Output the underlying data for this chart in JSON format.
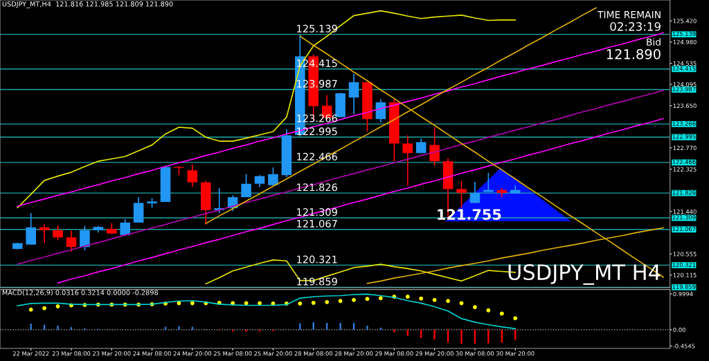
{
  "chart_data": [
    {
      "type": "candlestick",
      "title": "USDJPY_MT,H4  121.816 121.985 121.809 121.890",
      "categories": [
        null,
        null,
        null,
        null,
        null,
        null,
        null,
        null,
        null,
        null,
        null,
        null,
        null,
        null,
        null,
        null,
        null,
        null,
        null,
        null,
        null,
        null,
        null,
        null,
        null,
        null,
        null,
        null,
        null,
        null,
        null,
        null,
        null,
        null,
        null,
        null,
        null,
        null,
        null,
        null,
        null,
        null,
        null,
        null,
        null,
        null,
        null,
        null,
        null
      ],
      "ohlc": [
        [
          120.66,
          120.79,
          120.65,
          120.78
        ],
        [
          120.75,
          121.41,
          120.75,
          121.11
        ],
        [
          121.11,
          121.18,
          120.78,
          121.05
        ],
        [
          121.05,
          121.15,
          120.84,
          120.9
        ],
        [
          120.9,
          121.04,
          120.6,
          120.7
        ],
        [
          120.7,
          121.14,
          120.63,
          121.05
        ],
        [
          121.05,
          121.14,
          121.0,
          121.12
        ],
        [
          121.08,
          121.2,
          120.97,
          120.98
        ],
        [
          120.95,
          121.28,
          120.93,
          121.21
        ],
        [
          121.21,
          121.74,
          121.21,
          121.62
        ],
        [
          121.61,
          121.72,
          121.52,
          121.65
        ],
        [
          121.64,
          122.4,
          121.64,
          122.37
        ],
        [
          122.37,
          122.39,
          122.2,
          122.35
        ],
        [
          122.3,
          122.42,
          121.95,
          122.05
        ],
        [
          122.05,
          122.08,
          121.17,
          121.47
        ],
        [
          121.47,
          121.93,
          121.41,
          121.51
        ],
        [
          121.51,
          121.78,
          121.45,
          121.74
        ],
        [
          121.74,
          122.22,
          121.74,
          122.02
        ],
        [
          122.02,
          122.2,
          121.95,
          122.18
        ],
        [
          121.99,
          122.36,
          121.99,
          122.22
        ],
        [
          122.2,
          123.16,
          122.16,
          123.03
        ],
        [
          123.04,
          125.139,
          123.01,
          124.68
        ],
        [
          124.68,
          124.72,
          123.36,
          123.64
        ],
        [
          123.65,
          123.87,
          123.36,
          123.4
        ],
        [
          123.41,
          123.92,
          123.41,
          123.91
        ],
        [
          123.82,
          124.31,
          123.47,
          124.14
        ],
        [
          124.14,
          124.14,
          123.11,
          123.37
        ],
        [
          123.37,
          123.78,
          123.3,
          123.72
        ],
        [
          123.72,
          123.78,
          122.49,
          122.86
        ],
        [
          122.86,
          123.03,
          121.98,
          122.66
        ],
        [
          122.66,
          122.96,
          122.66,
          122.89
        ],
        [
          122.83,
          123.2,
          122.4,
          122.49
        ],
        [
          122.49,
          122.55,
          121.309,
          121.91
        ],
        [
          121.91,
          122.08,
          121.52,
          121.83
        ],
        [
          121.62,
          122.06,
          121.62,
          121.83
        ],
        [
          121.85,
          122.25,
          121.85,
          121.89
        ],
        [
          121.89,
          121.93,
          121.74,
          121.83
        ],
        [
          121.816,
          121.985,
          121.809,
          121.89
        ],
        null,
        null,
        null,
        null,
        null,
        null,
        null,
        null,
        null,
        null,
        null
      ],
      "colors": [
        "#2196f3",
        "#2196f3",
        "#ff0000",
        "#ff0000",
        "#ff0000",
        "#2196f3",
        "#2196f3",
        "#ff0000",
        "#2196f3",
        "#2196f3",
        "#2196f3",
        "#2196f3",
        "#ff0000",
        "#ff0000",
        "#ff0000",
        "#2196f3",
        "#2196f3",
        "#2196f3",
        "#2196f3",
        "#2196f3",
        "#2196f3",
        "#2196f3",
        "#ff0000",
        "#ff0000",
        "#2196f3",
        "#2196f3",
        "#ff0000",
        "#2196f3",
        "#ff0000",
        "#ff0000",
        "#2196f3",
        "#ff0000",
        "#ff0000",
        "#ff0000",
        "#2196f3",
        "#2196f3",
        "#ff0000",
        "#2196f3",
        null,
        null,
        null,
        null,
        null,
        null,
        null,
        null,
        null,
        null,
        null
      ],
      "series": [
        {
          "type": "line",
          "color": "#e6e600",
          "values": [
            121.52,
            121.8,
            122.09,
            122.18,
            122.26,
            122.38,
            122.49,
            122.54,
            122.59,
            122.71,
            122.83,
            123.06,
            123.2,
            123.18,
            122.99,
            122.91,
            122.91,
            122.97,
            123.04,
            123.11,
            123.41,
            124.48,
            124.9,
            125.1,
            125.32,
            125.53,
            125.58,
            125.63,
            125.58,
            125.52,
            125.47,
            125.5,
            125.52,
            125.54,
            125.48,
            125.43,
            125.44,
            125.44,
            null,
            null,
            null,
            null,
            null,
            null,
            null,
            null,
            null,
            null,
            null
          ]
        },
        {
          "type": "line",
          "color": "#e6e600",
          "values": [
            null,
            null,
            null,
            null,
            null,
            null,
            null,
            null,
            null,
            null,
            null,
            null,
            null,
            null,
            119.93,
            120.06,
            120.2,
            120.28,
            120.36,
            120.43,
            120.41,
            120.0,
            120.0,
            120.09,
            120.18,
            120.27,
            120.3,
            120.34,
            120.29,
            120.25,
            120.2,
            120.13,
            120.06,
            119.99,
            120.1,
            120.21,
            120.19,
            120.17,
            null,
            null,
            null,
            null,
            null,
            null,
            null,
            null,
            null,
            null,
            null
          ]
        },
        {
          "type": "line",
          "color": "#ff00ff",
          "values": [
            121.55,
            121.63,
            121.7,
            121.78,
            121.85,
            121.93,
            122.0,
            122.08,
            122.15,
            122.23,
            122.3,
            122.38,
            122.46,
            122.53,
            122.61,
            122.68,
            122.76,
            122.83,
            122.91,
            122.98,
            123.06,
            123.13,
            123.21,
            123.28,
            123.36,
            123.44,
            123.51,
            123.59,
            123.66,
            123.74,
            123.81,
            123.89,
            123.96,
            124.04,
            124.11,
            124.19,
            124.27,
            124.34,
            124.42,
            124.49,
            124.57,
            124.64,
            124.72,
            124.79,
            124.87,
            124.94,
            125.02,
            125.09,
            125.17
          ]
        },
        {
          "type": "line",
          "color": "#ff00ff",
          "values": [
            null,
            null,
            null,
            119.95,
            120.03,
            120.1,
            120.18,
            120.25,
            120.33,
            120.41,
            120.48,
            120.56,
            120.64,
            120.71,
            120.79,
            120.86,
            120.94,
            121.02,
            121.09,
            121.17,
            121.25,
            121.32,
            121.4,
            121.47,
            121.55,
            121.63,
            121.7,
            121.78,
            121.86,
            121.93,
            122.01,
            122.08,
            122.16,
            122.24,
            122.31,
            122.39,
            122.47,
            122.54,
            122.62,
            122.69,
            122.77,
            122.85,
            122.92,
            123.0,
            123.08,
            123.15,
            123.23,
            123.3,
            123.38
          ]
        },
        {
          "type": "line",
          "color": "#b000b0",
          "values": [
            120.34,
            120.42,
            120.49,
            120.57,
            120.64,
            120.72,
            120.79,
            120.87,
            120.95,
            121.02,
            121.1,
            121.17,
            121.25,
            121.32,
            121.4,
            121.47,
            121.55,
            121.63,
            121.7,
            121.78,
            121.85,
            121.93,
            122.0,
            122.08,
            122.16,
            122.23,
            122.31,
            122.38,
            122.46,
            122.53,
            122.61,
            122.68,
            122.76,
            122.84,
            122.91,
            122.99,
            123.06,
            123.14,
            123.21,
            123.29,
            123.36,
            123.44,
            123.52,
            123.59,
            123.67,
            123.74,
            123.82,
            123.89,
            123.97
          ]
        },
        {
          "type": "line",
          "color": "#e0b000",
          "values": [
            null,
            null,
            null,
            null,
            null,
            null,
            null,
            null,
            null,
            null,
            null,
            null,
            null,
            null,
            null,
            null,
            null,
            null,
            null,
            null,
            null,
            125.1,
            124.91,
            124.73,
            124.54,
            124.35,
            124.17,
            123.98,
            123.8,
            123.61,
            123.42,
            123.24,
            123.05,
            122.86,
            122.68,
            122.49,
            122.31,
            122.12,
            121.93,
            121.75,
            121.56,
            121.37,
            121.19,
            121.0,
            120.82,
            120.63,
            120.44,
            120.26,
            120.07
          ]
        },
        {
          "type": "line",
          "color": "#e0b000",
          "values": [
            null,
            null,
            null,
            null,
            null,
            null,
            null,
            null,
            null,
            null,
            null,
            null,
            null,
            null,
            121.19,
            121.35,
            121.5,
            121.66,
            121.81,
            121.97,
            122.12,
            122.28,
            122.43,
            122.59,
            122.74,
            122.9,
            123.05,
            123.21,
            123.36,
            123.52,
            123.67,
            123.83,
            123.99,
            124.14,
            124.3,
            124.45,
            124.61,
            124.76,
            124.92,
            125.07,
            125.23,
            125.38,
            125.54,
            125.69,
            null,
            null,
            null,
            null,
            null
          ]
        },
        {
          "type": "line",
          "color": "#e0b000",
          "values": [
            null,
            null,
            null,
            null,
            null,
            null,
            null,
            null,
            null,
            null,
            null,
            null,
            null,
            null,
            null,
            null,
            null,
            null,
            null,
            null,
            null,
            null,
            null,
            null,
            null,
            null,
            119.94,
            119.99,
            120.05,
            120.1,
            120.15,
            120.2,
            120.26,
            120.31,
            120.36,
            120.41,
            120.47,
            120.52,
            120.57,
            120.63,
            120.68,
            120.73,
            120.78,
            120.84,
            120.89,
            120.94,
            121.0,
            121.05,
            121.1
          ]
        }
      ],
      "ylim": [
        119.85,
        125.856
      ],
      "yticks": [
        {
          "value": 125.42,
          "label": "125.420"
        },
        {
          "value": 124.98,
          "label": "124.980"
        },
        {
          "value": 124.535,
          "label": "124.535"
        },
        {
          "value": 124.095,
          "label": "124.095"
        },
        {
          "value": 123.65,
          "label": "123.650"
        },
        {
          "value": 122.77,
          "label": "122.770"
        },
        {
          "value": 122.325,
          "label": "122.325"
        },
        {
          "value": 121.44,
          "label": "121.440"
        },
        {
          "value": 120.555,
          "label": "120.555"
        },
        {
          "value": 120.115,
          "label": "120.115"
        }
      ],
      "ref_lines": [
        {
          "axis": "y",
          "value": 125.139,
          "label": "125.139",
          "color": "#1fa6a6"
        },
        {
          "axis": "y",
          "value": 124.415,
          "label": "124.415",
          "color": "#1fa6a6"
        },
        {
          "axis": "y",
          "value": 123.987,
          "label": "123.987",
          "color": "#1fa6a6"
        },
        {
          "axis": "y",
          "value": 123.266,
          "label": "123.266",
          "color": "#1fa6a6"
        },
        {
          "axis": "y",
          "value": 122.995,
          "label": "122.995",
          "color": "#1fa6a6"
        },
        {
          "axis": "y",
          "value": 122.466,
          "label": "122.466",
          "color": "#1fa6a6"
        },
        {
          "axis": "y",
          "value": 121.826,
          "label": "121.826",
          "color": "#1fa6a6"
        },
        {
          "axis": "y",
          "value": 121.309,
          "label": "121.309",
          "color": "#1fa6a6"
        },
        {
          "axis": "y",
          "value": 121.067,
          "label": "121.067",
          "color": "#1fa6a6"
        },
        {
          "axis": "y",
          "value": 120.321,
          "label": "120.321",
          "color": "#1fa6a6"
        },
        {
          "axis": "y",
          "value": 119.859,
          "label": "119.859",
          "color": "#1fa6a6"
        }
      ],
      "annotations": [
        "TIME REMAIN",
        "02:23:19",
        "Bid",
        "121.890",
        "121.755",
        "USDJPY_MT H4"
      ],
      "tick_labels": "y",
      "grid": false
    },
    {
      "type": "bar",
      "title": "MACD(12,26,9) 0.0316 0.3214 0.0000 -0.2898",
      "categories": [
        null,
        "22 Mar 2022",
        null,
        null,
        "23 Mar 08:00",
        null,
        null,
        "23 Mar 20:00",
        null,
        null,
        "24 Mar 08:00",
        null,
        null,
        "24 Mar 20:00",
        null,
        null,
        "25 Mar 08:00",
        null,
        null,
        "25 Mar 20:00",
        null,
        null,
        "28 Mar 08:00",
        null,
        null,
        "28 Mar 20:00",
        null,
        null,
        "29 Mar 08:00",
        null,
        null,
        "29 Mar 20:00",
        null,
        null,
        "30 Mar 08:00",
        null,
        null,
        "30 Mar 20:00",
        null,
        null,
        null,
        null,
        null,
        null,
        null,
        null,
        null,
        null,
        null
      ],
      "series": [
        {
          "type": "bar",
          "colors": [
            null,
            "#2f7fe0",
            "#2f7fe0",
            "#2f7fe0",
            "#2f7fe0",
            "#2f7fe0",
            "#2f7fe0",
            "#2f7fe0",
            "#ff0000",
            "#2f7fe0",
            "#2f7fe0",
            "#2f7fe0",
            "#2f7fe0",
            "#2f7fe0",
            "#2f7fe0",
            "#ff0000",
            "#ff0000",
            "#ff0000",
            "#ff0000",
            "#ff0000",
            "#2f7fe0",
            "#2f7fe0",
            "#2f7fe0",
            "#2f7fe0",
            "#2f7fe0",
            "#2f7fe0",
            "#2f7fe0",
            "#2f7fe0",
            "#ff0000",
            "#ff0000",
            "#ff0000",
            "#ff0000",
            "#ff0000",
            "#ff0000",
            "#ff0000",
            "#ff0000",
            "#ff0000",
            "#ff0000",
            null,
            null,
            null,
            null,
            null,
            null,
            null,
            null,
            null,
            null,
            null
          ],
          "values": [
            null,
            0.17,
            0.14,
            0.11,
            0.07,
            0.04,
            0.02,
            0.01,
            null,
            0,
            0,
            0.08,
            0.1,
            0.08,
            0.01,
            -0.02,
            -0.05,
            -0.06,
            -0.05,
            -0.04,
            0,
            0.18,
            0.21,
            0.19,
            0.19,
            0.19,
            0.11,
            0.06,
            -0.07,
            -0.17,
            -0.23,
            -0.27,
            -0.35,
            -0.39,
            -0.39,
            -0.38,
            -0.36,
            -0.29,
            null,
            null,
            null,
            null,
            null,
            null,
            null,
            null,
            null,
            null,
            null
          ]
        },
        {
          "type": "line",
          "color": "#00d0d0",
          "values": [
            0.67,
            0.73,
            0.74,
            0.74,
            0.71,
            0.7,
            0.7,
            0.7,
            0.7,
            0.7,
            0.71,
            0.76,
            0.8,
            0.81,
            0.77,
            0.71,
            0.69,
            0.68,
            0.68,
            0.68,
            0.7,
            0.88,
            0.92,
            0.94,
            0.95,
            0.98,
            0.99,
            0.95,
            0.9,
            0.81,
            0.74,
            0.64,
            0.52,
            0.31,
            0.21,
            0.14,
            0.08,
            0.03,
            null,
            null,
            null,
            null,
            null,
            null,
            null,
            null,
            null,
            null,
            null
          ]
        },
        {
          "type": "scatter",
          "color": "#ffff00",
          "marker": "circle",
          "values": [
            null,
            0.56,
            0.6,
            0.65,
            0.68,
            0.69,
            0.7,
            0.7,
            0.7,
            0.7,
            0.71,
            0.73,
            0.74,
            0.74,
            0.74,
            0.75,
            0.74,
            0.74,
            0.74,
            0.73,
            0.73,
            0.73,
            0.75,
            0.77,
            0.8,
            0.83,
            0.86,
            0.88,
            0.92,
            0.92,
            0.87,
            0.83,
            0.8,
            0.74,
            0.63,
            0.54,
            0.45,
            0.32,
            null,
            null,
            null,
            null,
            null,
            null,
            null,
            null,
            null,
            null,
            null
          ]
        }
      ],
      "ylim": [
        -0.52,
        1.12
      ],
      "yticks": [
        0.9994,
        {
          "value": 0,
          "label": "0.00"
        },
        -0.4545
      ],
      "ref_lines": [
        {
          "axis": "y",
          "value": 0,
          "color": "#a0a0a0",
          "line_style": "dotted"
        }
      ],
      "grid": false
    }
  ]
}
